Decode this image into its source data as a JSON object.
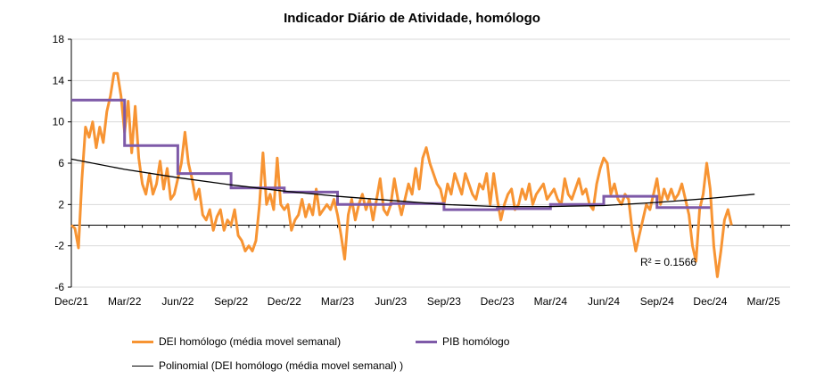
{
  "chart_data": {
    "type": "line",
    "title": "Indicador Diário de Atividade, homólogo",
    "xlabel": "",
    "ylabel": "",
    "x_tick_labels": [
      "Dec/21",
      "Mar/22",
      "Jun/22",
      "Sep/22",
      "Dec/22",
      "Mar/23",
      "Jun/23",
      "Sep/23",
      "Dec/23",
      "Mar/24",
      "Jun/24",
      "Sep/24",
      "Dec/24",
      "Mar/25"
    ],
    "x_range_months": [
      0,
      40.5
    ],
    "y_ticks": [
      18,
      14,
      10,
      6,
      2,
      -2,
      -6
    ],
    "y_tick_labels": [
      "18",
      "14",
      "10",
      "6",
      "2",
      "-2",
      "-6"
    ],
    "ylim": [
      -6,
      18
    ],
    "grid": "horizontal",
    "annotation": "R² = 0.1566",
    "legend_position": "bottom",
    "colors": {
      "dei": "#F79433",
      "pib": "#7E5AA8",
      "trend": "#000000",
      "grid": "#D9D9D9"
    },
    "series": [
      {
        "name": "DEI homólogo (média movel semanal)",
        "style": "line",
        "x_unit": "months since Dec/21",
        "points": [
          [
            0.0,
            0.0
          ],
          [
            0.2,
            -0.3
          ],
          [
            0.4,
            -2.2
          ],
          [
            0.6,
            4.5
          ],
          [
            0.8,
            9.5
          ],
          [
            1.0,
            8.5
          ],
          [
            1.2,
            10.0
          ],
          [
            1.4,
            7.5
          ],
          [
            1.6,
            9.5
          ],
          [
            1.8,
            8.0
          ],
          [
            2.0,
            11.0
          ],
          [
            2.2,
            12.5
          ],
          [
            2.4,
            14.7
          ],
          [
            2.6,
            14.7
          ],
          [
            2.8,
            12.5
          ],
          [
            3.0,
            9.0
          ],
          [
            3.2,
            12.0
          ],
          [
            3.4,
            7.0
          ],
          [
            3.6,
            11.5
          ],
          [
            3.8,
            6.5
          ],
          [
            4.0,
            4.0
          ],
          [
            4.2,
            3.0
          ],
          [
            4.4,
            5.0
          ],
          [
            4.6,
            3.0
          ],
          [
            4.8,
            4.0
          ],
          [
            5.0,
            6.2
          ],
          [
            5.2,
            3.5
          ],
          [
            5.4,
            5.5
          ],
          [
            5.6,
            2.5
          ],
          [
            5.8,
            3.0
          ],
          [
            6.0,
            4.5
          ],
          [
            6.2,
            6.0
          ],
          [
            6.4,
            9.0
          ],
          [
            6.6,
            6.0
          ],
          [
            6.8,
            4.5
          ],
          [
            7.0,
            2.5
          ],
          [
            7.2,
            3.5
          ],
          [
            7.4,
            1.0
          ],
          [
            7.6,
            0.5
          ],
          [
            7.8,
            1.5
          ],
          [
            8.0,
            -0.5
          ],
          [
            8.2,
            0.8
          ],
          [
            8.4,
            1.5
          ],
          [
            8.6,
            -0.5
          ],
          [
            8.8,
            0.5
          ],
          [
            9.0,
            0.0
          ],
          [
            9.2,
            1.5
          ],
          [
            9.4,
            -1.0
          ],
          [
            9.6,
            -1.5
          ],
          [
            9.8,
            -2.5
          ],
          [
            10.0,
            -2.0
          ],
          [
            10.2,
            -2.5
          ],
          [
            10.4,
            -1.5
          ],
          [
            10.6,
            2.0
          ],
          [
            10.8,
            7.0
          ],
          [
            11.0,
            2.0
          ],
          [
            11.2,
            3.0
          ],
          [
            11.4,
            1.5
          ],
          [
            11.6,
            6.5
          ],
          [
            11.8,
            2.0
          ],
          [
            12.0,
            1.5
          ],
          [
            12.2,
            2.0
          ],
          [
            12.4,
            -0.5
          ],
          [
            12.6,
            0.5
          ],
          [
            12.8,
            1.0
          ],
          [
            13.0,
            2.5
          ],
          [
            13.2,
            0.8
          ],
          [
            13.4,
            2.0
          ],
          [
            13.6,
            1.0
          ],
          [
            13.8,
            3.5
          ],
          [
            14.0,
            1.0
          ],
          [
            14.2,
            1.5
          ],
          [
            14.4,
            2.0
          ],
          [
            14.6,
            1.5
          ],
          [
            14.8,
            2.5
          ],
          [
            15.0,
            1.0
          ],
          [
            15.2,
            -1.0
          ],
          [
            15.4,
            -3.3
          ],
          [
            15.6,
            1.0
          ],
          [
            15.8,
            2.5
          ],
          [
            16.0,
            0.5
          ],
          [
            16.2,
            2.0
          ],
          [
            16.4,
            3.0
          ],
          [
            16.6,
            1.5
          ],
          [
            16.8,
            2.5
          ],
          [
            17.0,
            0.5
          ],
          [
            17.2,
            2.5
          ],
          [
            17.4,
            4.5
          ],
          [
            17.6,
            1.5
          ],
          [
            17.8,
            1.0
          ],
          [
            18.0,
            2.0
          ],
          [
            18.2,
            4.5
          ],
          [
            18.4,
            2.5
          ],
          [
            18.6,
            1.0
          ],
          [
            18.8,
            2.5
          ],
          [
            19.0,
            4.0
          ],
          [
            19.2,
            3.0
          ],
          [
            19.4,
            5.5
          ],
          [
            19.6,
            3.5
          ],
          [
            19.8,
            6.5
          ],
          [
            20.0,
            7.5
          ],
          [
            20.2,
            6.0
          ],
          [
            20.4,
            5.0
          ],
          [
            20.6,
            4.0
          ],
          [
            20.8,
            3.5
          ],
          [
            21.0,
            2.0
          ],
          [
            21.2,
            4.0
          ],
          [
            21.4,
            3.0
          ],
          [
            21.6,
            5.0
          ],
          [
            21.8,
            4.0
          ],
          [
            22.0,
            3.0
          ],
          [
            22.2,
            5.0
          ],
          [
            22.4,
            4.0
          ],
          [
            22.6,
            3.0
          ],
          [
            22.8,
            2.5
          ],
          [
            23.0,
            4.0
          ],
          [
            23.2,
            3.5
          ],
          [
            23.4,
            5.0
          ],
          [
            23.6,
            2.0
          ],
          [
            23.8,
            5.0
          ],
          [
            24.0,
            2.5
          ],
          [
            24.2,
            0.5
          ],
          [
            24.4,
            2.0
          ],
          [
            24.6,
            3.0
          ],
          [
            24.8,
            3.5
          ],
          [
            25.0,
            1.5
          ],
          [
            25.2,
            2.0
          ],
          [
            25.4,
            3.5
          ],
          [
            25.6,
            2.5
          ],
          [
            25.8,
            4.0
          ],
          [
            26.0,
            2.0
          ],
          [
            26.2,
            3.0
          ],
          [
            26.4,
            3.5
          ],
          [
            26.6,
            4.0
          ],
          [
            26.8,
            2.5
          ],
          [
            27.0,
            3.0
          ],
          [
            27.2,
            3.5
          ],
          [
            27.4,
            2.5
          ],
          [
            27.6,
            2.0
          ],
          [
            27.8,
            4.5
          ],
          [
            28.0,
            3.0
          ],
          [
            28.2,
            2.5
          ],
          [
            28.4,
            3.5
          ],
          [
            28.6,
            4.5
          ],
          [
            28.8,
            3.0
          ],
          [
            29.0,
            3.5
          ],
          [
            29.2,
            2.0
          ],
          [
            29.4,
            1.5
          ],
          [
            29.6,
            4.0
          ],
          [
            29.8,
            5.5
          ],
          [
            30.0,
            6.5
          ],
          [
            30.2,
            6.0
          ],
          [
            30.4,
            3.0
          ],
          [
            30.6,
            4.0
          ],
          [
            30.8,
            2.5
          ],
          [
            31.0,
            2.0
          ],
          [
            31.2,
            3.0
          ],
          [
            31.4,
            2.5
          ],
          [
            31.6,
            -0.5
          ],
          [
            31.8,
            -2.5
          ],
          [
            32.0,
            -1.0
          ],
          [
            32.2,
            0.5
          ],
          [
            32.4,
            2.0
          ],
          [
            32.6,
            1.5
          ],
          [
            32.8,
            3.0
          ],
          [
            33.0,
            4.5
          ],
          [
            33.2,
            2.0
          ],
          [
            33.4,
            3.5
          ],
          [
            33.6,
            2.5
          ],
          [
            33.8,
            3.5
          ],
          [
            34.0,
            2.5
          ],
          [
            34.2,
            3.0
          ],
          [
            34.4,
            4.0
          ],
          [
            34.6,
            2.5
          ],
          [
            34.8,
            1.0
          ],
          [
            35.0,
            -2.0
          ],
          [
            35.2,
            -3.5
          ],
          [
            35.4,
            1.5
          ],
          [
            35.6,
            3.0
          ],
          [
            35.8,
            6.0
          ],
          [
            36.0,
            3.5
          ],
          [
            36.2,
            -2.0
          ],
          [
            36.4,
            -5.0
          ],
          [
            36.6,
            -2.5
          ],
          [
            36.8,
            0.5
          ],
          [
            37.0,
            1.5
          ],
          [
            37.2,
            0.0
          ]
        ]
      },
      {
        "name": "PIB homólogo",
        "style": "step",
        "x_unit": "months since Dec/21",
        "steps": [
          [
            0.0,
            3.0,
            12.1
          ],
          [
            3.0,
            6.0,
            7.7
          ],
          [
            6.0,
            9.0,
            5.0
          ],
          [
            9.0,
            12.0,
            3.6
          ],
          [
            12.0,
            15.0,
            3.2
          ],
          [
            15.0,
            18.0,
            2.0
          ],
          [
            18.0,
            21.0,
            2.1
          ],
          [
            21.0,
            24.0,
            1.5
          ],
          [
            24.0,
            27.0,
            1.6
          ],
          [
            27.0,
            30.0,
            2.0
          ],
          [
            30.0,
            33.0,
            2.8
          ],
          [
            33.0,
            36.0,
            1.7
          ]
        ]
      },
      {
        "name": "Polinomial (DEI homólogo (média movel semanal) )",
        "style": "trend",
        "x_unit": "months since Dec/21",
        "points": [
          [
            0,
            6.4
          ],
          [
            3,
            5.4
          ],
          [
            6,
            4.6
          ],
          [
            9,
            3.9
          ],
          [
            12,
            3.3
          ],
          [
            15,
            2.8
          ],
          [
            18,
            2.4
          ],
          [
            21,
            2.0
          ],
          [
            24,
            1.8
          ],
          [
            27,
            1.8
          ],
          [
            30,
            1.9
          ],
          [
            33,
            2.2
          ],
          [
            36,
            2.6
          ],
          [
            38.5,
            3.0
          ]
        ]
      }
    ]
  },
  "legend": {
    "dei_label": "DEI homólogo (média movel semanal)",
    "pib_label": "PIB homólogo",
    "trend_label": "Polinomial (DEI homólogo (média movel semanal) )"
  }
}
